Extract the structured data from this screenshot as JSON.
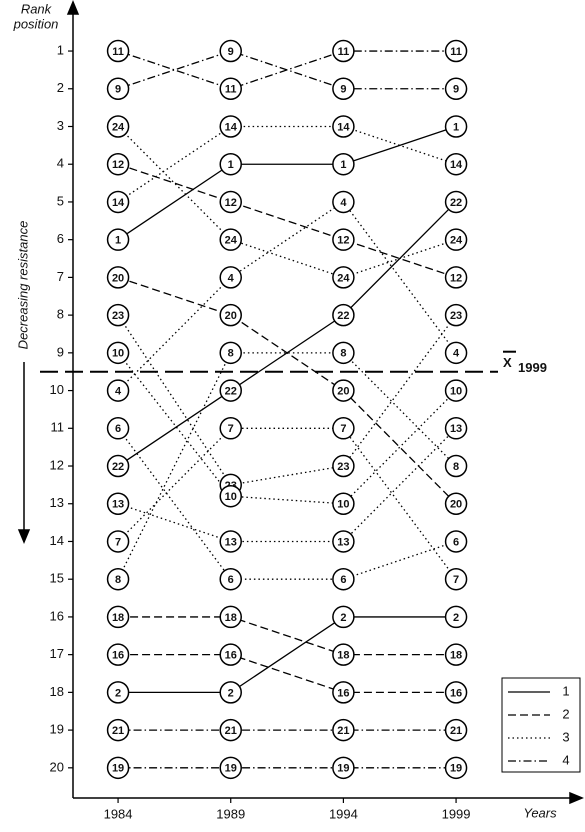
{
  "chart_data": {
    "type": "bump",
    "ylabel_lines": [
      "Rank",
      "position"
    ],
    "ylabel_side": "Decreasing resistance",
    "xlabel": "Years",
    "x": [
      1984,
      1989,
      1994,
      1999
    ],
    "xlim": [
      1982,
      2004.5
    ],
    "xticks": [
      1984,
      1989,
      1994,
      1999
    ],
    "ylim": [
      20.8,
      -0.3
    ],
    "yticks": [
      1,
      2,
      3,
      4,
      5,
      6,
      7,
      8,
      9,
      10,
      11,
      12,
      13,
      14,
      15,
      16,
      17,
      18,
      19,
      20
    ],
    "reference_line": {
      "label": "X",
      "subscript": "1999",
      "value": 9.5
    },
    "groups": [
      {
        "name": "1",
        "dash": "none"
      },
      {
        "name": "2",
        "dash": "8 4"
      },
      {
        "name": "3",
        "dash": "1.5 3"
      },
      {
        "name": "4",
        "dash": "8 3 1.5 3"
      }
    ],
    "legend_position": "lower right",
    "series": [
      {
        "name": "11",
        "group": 3,
        "values": [
          1,
          2,
          1,
          1
        ]
      },
      {
        "name": "9",
        "group": 3,
        "values": [
          2,
          1,
          2,
          2
        ]
      },
      {
        "name": "24",
        "group": 2,
        "values": [
          3,
          6,
          7,
          6
        ]
      },
      {
        "name": "12",
        "group": 1,
        "values": [
          4,
          5,
          6,
          7
        ]
      },
      {
        "name": "14",
        "group": 2,
        "values": [
          5,
          3,
          3,
          4
        ]
      },
      {
        "name": "1",
        "group": 0,
        "values": [
          6,
          4,
          4,
          3
        ]
      },
      {
        "name": "20",
        "group": 1,
        "values": [
          7,
          8,
          10,
          13
        ]
      },
      {
        "name": "23",
        "group": 2,
        "values": [
          8,
          12.5,
          12,
          8
        ]
      },
      {
        "name": "10",
        "group": 2,
        "values": [
          9,
          12.8,
          13,
          10
        ]
      },
      {
        "name": "4",
        "group": 2,
        "values": [
          10,
          7,
          5,
          9
        ]
      },
      {
        "name": "6",
        "group": 2,
        "values": [
          11,
          15,
          15,
          14
        ]
      },
      {
        "name": "22",
        "group": 0,
        "values": [
          12,
          10,
          8,
          5
        ]
      },
      {
        "name": "13",
        "group": 2,
        "values": [
          13,
          14,
          14,
          11
        ]
      },
      {
        "name": "7",
        "group": 2,
        "values": [
          14,
          11,
          11,
          15
        ]
      },
      {
        "name": "8",
        "group": 2,
        "values": [
          15,
          9,
          9,
          12
        ]
      },
      {
        "name": "18",
        "group": 1,
        "values": [
          16,
          16,
          17,
          17
        ]
      },
      {
        "name": "16",
        "group": 1,
        "values": [
          17,
          17,
          18,
          18
        ]
      },
      {
        "name": "2",
        "group": 0,
        "values": [
          18,
          18,
          16,
          16
        ]
      },
      {
        "name": "21",
        "group": 3,
        "values": [
          19,
          19,
          19,
          19
        ]
      },
      {
        "name": "19",
        "group": 3,
        "values": [
          20,
          20,
          20,
          20
        ]
      }
    ]
  }
}
